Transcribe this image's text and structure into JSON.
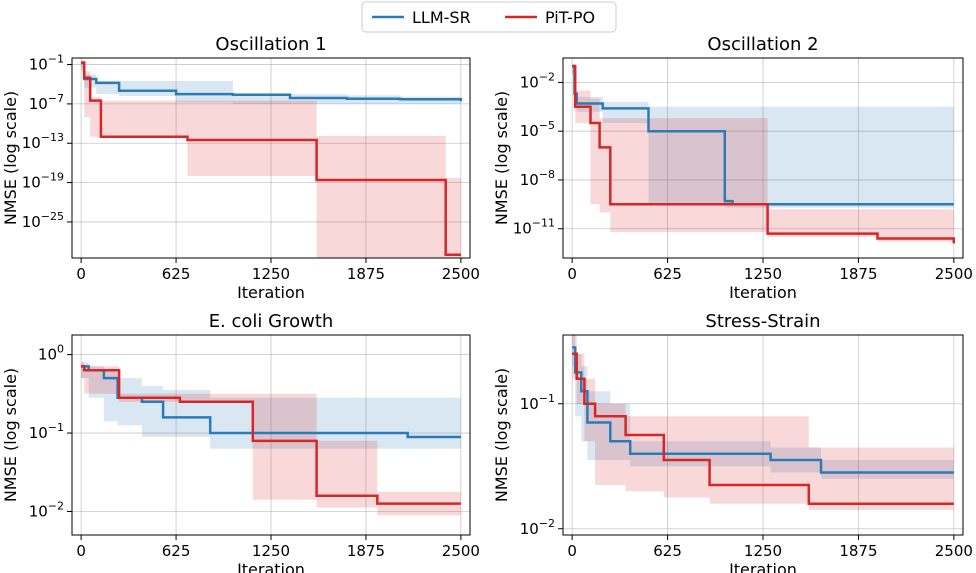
{
  "figure": {
    "legend": {
      "placement": "top-center",
      "entries": [
        {
          "name": "LLM-SR",
          "color": "#2c7bb6"
        },
        {
          "name": "PiT-PO",
          "color": "#d62728"
        }
      ]
    }
  },
  "chart_data": [
    {
      "type": "line",
      "title": "Oscillation 1",
      "xlabel": "Iteration",
      "ylabel": "NMSE (log scale)",
      "yscale": "log",
      "xlim": [
        -60,
        2560
      ],
      "ylim_exp": [
        -30.5,
        0
      ],
      "xticks": [
        0,
        625,
        1250,
        1875,
        2500
      ],
      "yticks": [
        {
          "exp": -1,
          "label": "10−1"
        },
        {
          "exp": -7,
          "label": "10−7"
        },
        {
          "exp": -13,
          "label": "10−13"
        },
        {
          "exp": -19,
          "label": "10−19"
        },
        {
          "exp": -25,
          "label": "10−25"
        }
      ],
      "grid": true,
      "series": [
        {
          "name": "LLM-SR",
          "color": "#2c7bb6",
          "x": [
            0,
            20,
            100,
            250,
            625,
            1000,
            1375,
            1750,
            2100,
            2500
          ],
          "log10_y": [
            -0.7,
            -3.2,
            -3.8,
            -5.0,
            -5.5,
            -5.6,
            -6.1,
            -6.2,
            -6.3,
            -6.6
          ],
          "band_upper": [
            -0.5,
            -2.5,
            -3.5,
            -3.5,
            -3.5,
            -5.4,
            -5.5,
            -5.7,
            -5.9,
            -5.9
          ],
          "band_lower": [
            -1.5,
            -4.5,
            -5.5,
            -5.8,
            -6.8,
            -7.0,
            -7.0,
            -7.0,
            -7.0,
            -7.0
          ]
        },
        {
          "name": "PiT-PO",
          "color": "#d62728",
          "x": [
            0,
            20,
            60,
            130,
            700,
            1550,
            2400,
            2500
          ],
          "log10_y": [
            -0.7,
            -3.0,
            -6.5,
            -12.0,
            -12.5,
            -18.6,
            -30.0,
            -30.0
          ],
          "band_upper": [
            -0.5,
            -2.0,
            -6.0,
            -6.5,
            -6.5,
            -11.9,
            -18.3,
            -18.3
          ],
          "band_lower": [
            -2.0,
            -9.0,
            -12.0,
            -12.0,
            -18.0,
            -30.5,
            -30.5,
            -30.5
          ]
        }
      ]
    },
    {
      "type": "line",
      "title": "Oscillation 2",
      "xlabel": "Iteration",
      "ylabel": "NMSE (log scale)",
      "yscale": "log",
      "xlim": [
        -60,
        2560
      ],
      "ylim_exp": [
        -12.8,
        -0.5
      ],
      "xticks": [
        0,
        625,
        1250,
        1875,
        2500
      ],
      "yticks": [
        {
          "exp": -2,
          "label": "10−2"
        },
        {
          "exp": -5,
          "label": "10−5"
        },
        {
          "exp": -8,
          "label": "10−8"
        },
        {
          "exp": -11,
          "label": "10−11"
        }
      ],
      "grid": true,
      "series": [
        {
          "name": "LLM-SR",
          "color": "#2c7bb6",
          "x": [
            0,
            15,
            30,
            200,
            500,
            1000,
            1050,
            2500
          ],
          "log10_y": [
            -1.0,
            -2.7,
            -3.3,
            -3.6,
            -5.0,
            -9.3,
            -9.5,
            -9.5
          ],
          "band_upper": [
            -0.9,
            -2.2,
            -2.9,
            -3.2,
            -3.5,
            -3.5,
            -3.5,
            -3.5
          ],
          "band_lower": [
            -1.5,
            -3.2,
            -3.8,
            -4.5,
            -9.5,
            -9.7,
            -9.7,
            -9.7
          ]
        },
        {
          "name": "PiT-PO",
          "color": "#d62728",
          "x": [
            0,
            20,
            120,
            180,
            250,
            1280,
            2000,
            2500
          ],
          "log10_y": [
            -1.0,
            -3.5,
            -4.5,
            -6.0,
            -9.5,
            -11.3,
            -11.6,
            -11.9
          ],
          "band_upper": [
            -0.9,
            -2.5,
            -3.0,
            -4.2,
            -4.2,
            -9.8,
            -9.8,
            -9.8
          ],
          "band_lower": [
            -1.5,
            -4.5,
            -9.5,
            -10.0,
            -11.2,
            -11.5,
            -11.8,
            -12.0
          ]
        }
      ]
    },
    {
      "type": "line",
      "title": "E. coli Growth",
      "xlabel": "Iteration",
      "ylabel": "NMSE (log scale)",
      "yscale": "log",
      "xlim": [
        -60,
        2560
      ],
      "ylim_exp": [
        -2.3,
        0.25
      ],
      "xticks": [
        0,
        625,
        1250,
        1875,
        2500
      ],
      "yticks": [
        {
          "exp": 0,
          "label": "100"
        },
        {
          "exp": -1,
          "label": "10−1"
        },
        {
          "exp": -2,
          "label": "10−2"
        }
      ],
      "grid": true,
      "series": [
        {
          "name": "LLM-SR",
          "color": "#2c7bb6",
          "x": [
            0,
            50,
            150,
            240,
            400,
            540,
            850,
            1100,
            2150,
            2500
          ],
          "log10_y": [
            -0.15,
            -0.2,
            -0.3,
            -0.55,
            -0.6,
            -0.8,
            -1.0,
            -1.0,
            -1.05,
            -1.05
          ],
          "band_upper": [
            -0.1,
            -0.15,
            -0.2,
            -0.3,
            -0.4,
            -0.45,
            -0.55,
            -0.55,
            -0.55,
            -0.55
          ],
          "band_lower": [
            -0.3,
            -0.55,
            -0.85,
            -0.9,
            -1.05,
            -1.05,
            -1.2,
            -1.2,
            -1.2,
            -1.2
          ]
        },
        {
          "name": "PiT-PO",
          "color": "#d62728",
          "x": [
            0,
            20,
            250,
            650,
            1130,
            1550,
            1950,
            2500
          ],
          "log10_y": [
            -0.15,
            -0.2,
            -0.55,
            -0.6,
            -1.1,
            -1.8,
            -1.9,
            -1.9
          ],
          "band_upper": [
            -0.1,
            -0.15,
            -0.5,
            -0.5,
            -0.5,
            -1.1,
            -1.75,
            -1.75
          ],
          "band_lower": [
            -0.3,
            -0.5,
            -0.6,
            -0.6,
            -1.85,
            -1.95,
            -2.05,
            -2.05
          ]
        }
      ]
    },
    {
      "type": "line",
      "title": "Stress-Strain",
      "xlabel": "Iteration",
      "ylabel": "NMSE (log scale)",
      "yscale": "log",
      "xlim": [
        -60,
        2560
      ],
      "ylim_exp": [
        -2.05,
        -0.45
      ],
      "xticks": [
        0,
        625,
        1250,
        1875,
        2500
      ],
      "yticks": [
        {
          "exp": -1,
          "label": "10−1"
        },
        {
          "exp": -2,
          "label": "10−2"
        }
      ],
      "grid": true,
      "series": [
        {
          "name": "LLM-SR",
          "color": "#2c7bb6",
          "x": [
            0,
            20,
            60,
            100,
            250,
            380,
            1300,
            1630,
            2500
          ],
          "log10_y": [
            -0.55,
            -0.75,
            -0.9,
            -1.15,
            -1.3,
            -1.4,
            -1.45,
            -1.55,
            -1.55
          ],
          "band_upper": [
            -0.45,
            -0.6,
            -0.7,
            -0.9,
            -1.0,
            -1.3,
            -1.35,
            -1.45,
            -1.45
          ],
          "band_lower": [
            -0.7,
            -1.1,
            -1.3,
            -1.45,
            -1.45,
            -1.5,
            -1.55,
            -1.6,
            -1.6
          ]
        },
        {
          "name": "PiT-PO",
          "color": "#d62728",
          "x": [
            0,
            30,
            80,
            150,
            350,
            600,
            900,
            1550,
            2500
          ],
          "log10_y": [
            -0.6,
            -0.8,
            -1.0,
            -1.1,
            -1.25,
            -1.45,
            -1.65,
            -1.8,
            -1.8
          ],
          "band_upper": [
            -0.45,
            -0.6,
            -0.8,
            -1.0,
            -1.1,
            -1.1,
            -1.1,
            -1.35,
            -1.35
          ],
          "band_lower": [
            -0.8,
            -1.0,
            -1.3,
            -1.65,
            -1.7,
            -1.75,
            -1.8,
            -1.85,
            -1.85
          ]
        }
      ]
    }
  ]
}
